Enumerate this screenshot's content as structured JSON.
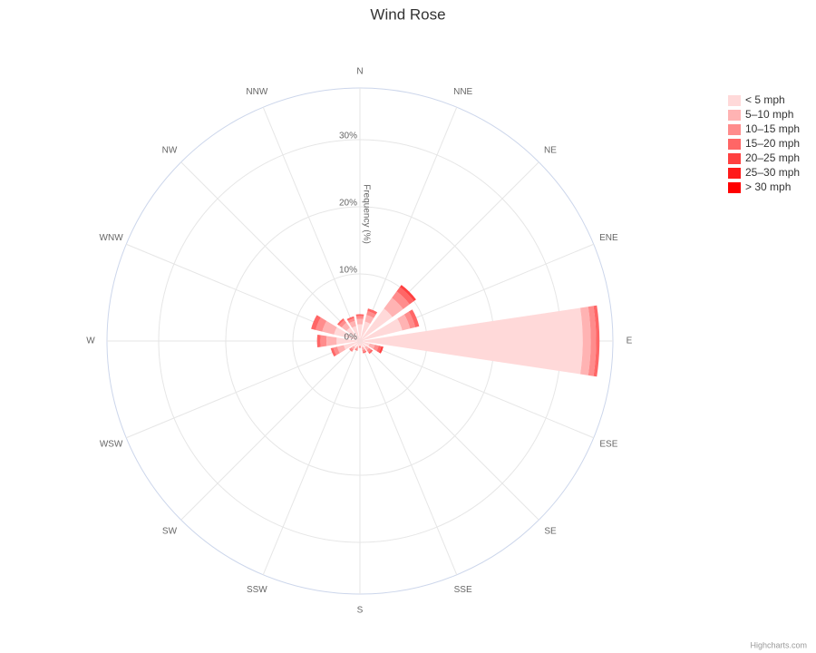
{
  "chart_data": {
    "type": "windrose",
    "title": "Wind Rose",
    "y_axis_title": "Frequency (%)",
    "categories": [
      "N",
      "NNE",
      "NE",
      "ENE",
      "E",
      "ESE",
      "SE",
      "SSE",
      "S",
      "SSW",
      "SW",
      "WSW",
      "W",
      "WNW",
      "NW",
      "NNW"
    ],
    "ylim": [
      0,
      37.7
    ],
    "yticks": [
      {
        "value": 0,
        "label": "0%"
      },
      {
        "value": 10,
        "label": "10%"
      },
      {
        "value": 20,
        "label": "20%"
      },
      {
        "value": 30,
        "label": "30%"
      }
    ],
    "grid": true,
    "series": [
      {
        "name": "< 5 mph",
        "color": "#ffd9d9",
        "values": [
          2.5,
          3,
          6,
          6.5,
          33.2,
          1.5,
          1.2,
          1,
          0.6,
          0.9,
          1.2,
          2.5,
          3.5,
          4,
          2.5,
          2.3
        ]
      },
      {
        "name": "5–10 mph",
        "color": "#ffb3b3",
        "values": [
          0.8,
          1,
          2,
          1.2,
          1.2,
          0.8,
          0.5,
          0.4,
          0.2,
          0.3,
          0.4,
          1,
          1.5,
          1.8,
          0.9,
          0.8
        ]
      },
      {
        "name": "10–15 mph",
        "color": "#ff8c8c",
        "values": [
          0.4,
          0.6,
          1.2,
          0.8,
          0.8,
          0.6,
          0.4,
          0.3,
          0.1,
          0.2,
          0.3,
          0.6,
          0.9,
          1,
          0.5,
          0.4
        ]
      },
      {
        "name": "15–20 mph",
        "color": "#ff6666",
        "values": [
          0.3,
          0.4,
          0.8,
          0.6,
          0.5,
          0.4,
          0.3,
          0.2,
          0.1,
          0.1,
          0.1,
          0.4,
          0.5,
          0.7,
          0.3,
          0.3
        ]
      },
      {
        "name": "20–25 mph",
        "color": "#ff4040",
        "values": [
          0,
          0,
          0.4,
          0,
          0,
          0.2,
          0,
          0,
          0,
          0,
          0,
          0,
          0,
          0,
          0,
          0
        ]
      },
      {
        "name": "25–30 mph",
        "color": "#ff1a1a",
        "values": [
          0,
          0,
          0,
          0,
          0,
          0.1,
          0,
          0,
          0,
          0,
          0,
          0,
          0,
          0,
          0,
          0
        ]
      },
      {
        "name": "> 30 mph",
        "color": "#ff0000",
        "values": [
          0,
          0,
          0,
          0,
          0,
          0,
          0,
          0,
          0,
          0,
          0,
          0,
          0,
          0,
          0,
          0
        ]
      }
    ],
    "credits": "Highcharts.com"
  }
}
